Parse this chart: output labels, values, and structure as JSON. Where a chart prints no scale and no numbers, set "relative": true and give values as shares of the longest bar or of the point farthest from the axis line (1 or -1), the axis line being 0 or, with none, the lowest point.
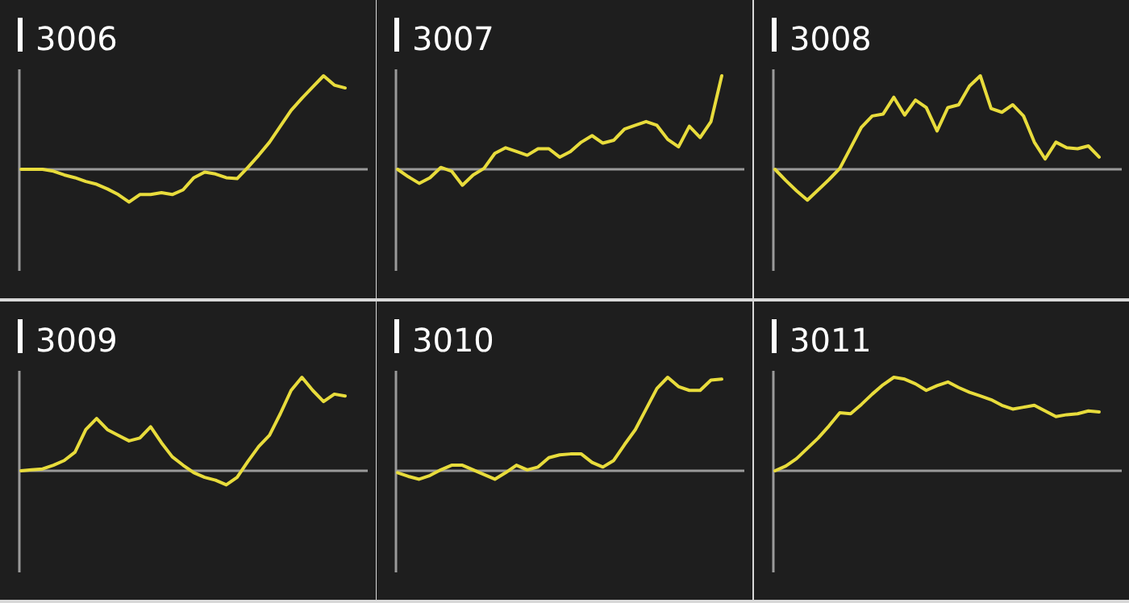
{
  "chart_data": [
    {
      "type": "line",
      "title": "3006",
      "relative": true,
      "categories": [
        null,
        null,
        null,
        null,
        null,
        null,
        null,
        null,
        null,
        null,
        null,
        null,
        null,
        null,
        null,
        null,
        null,
        null,
        null,
        null,
        null,
        null,
        null,
        null,
        null,
        null,
        null,
        null,
        null,
        null,
        null
      ],
      "series": [
        {
          "color": "#e8dc3c",
          "values": [
            0,
            0,
            0,
            -0.02,
            -0.06,
            -0.09,
            -0.13,
            -0.16,
            -0.21,
            -0.27,
            -0.35,
            -0.27,
            -0.27,
            -0.25,
            -0.27,
            -0.22,
            -0.09,
            -0.03,
            -0.05,
            -0.09,
            -0.1,
            0.02,
            0.15,
            0.29,
            0.46,
            0.63,
            0.76,
            0.88,
            1,
            0.9,
            0.87
          ]
        }
      ]
    },
    {
      "type": "line",
      "title": "3007",
      "relative": true,
      "categories": [
        null,
        null,
        null,
        null,
        null,
        null,
        null,
        null,
        null,
        null,
        null,
        null,
        null,
        null,
        null,
        null,
        null,
        null,
        null,
        null,
        null,
        null,
        null,
        null,
        null,
        null,
        null,
        null,
        null,
        null,
        null
      ],
      "series": [
        {
          "color": "#e8dc3c",
          "values": [
            0,
            -0.08,
            -0.15,
            -0.09,
            0.02,
            -0.02,
            -0.17,
            -0.06,
            0.01,
            0.17,
            0.23,
            0.19,
            0.15,
            0.22,
            0.22,
            0.13,
            0.19,
            0.29,
            0.36,
            0.28,
            0.31,
            0.43,
            0.47,
            0.51,
            0.47,
            0.32,
            0.24,
            0.46,
            0.34,
            0.51,
            1
          ]
        }
      ]
    },
    {
      "type": "line",
      "title": "3008",
      "relative": true,
      "categories": [
        null,
        null,
        null,
        null,
        null,
        null,
        null,
        null,
        null,
        null,
        null,
        null,
        null,
        null,
        null,
        null,
        null,
        null,
        null,
        null,
        null,
        null,
        null,
        null,
        null,
        null,
        null,
        null,
        null,
        null,
        null
      ],
      "series": [
        {
          "color": "#e8dc3c",
          "values": [
            0,
            -0.12,
            -0.23,
            -0.33,
            -0.22,
            -0.11,
            0.01,
            0.23,
            0.45,
            0.57,
            0.59,
            0.77,
            0.58,
            0.74,
            0.66,
            0.41,
            0.66,
            0.69,
            0.89,
            1,
            0.65,
            0.61,
            0.69,
            0.57,
            0.29,
            0.11,
            0.29,
            0.23,
            0.22,
            0.25,
            0.13
          ]
        }
      ]
    },
    {
      "type": "line",
      "title": "3009",
      "relative": true,
      "categories": [
        null,
        null,
        null,
        null,
        null,
        null,
        null,
        null,
        null,
        null,
        null,
        null,
        null,
        null,
        null,
        null,
        null,
        null,
        null,
        null,
        null,
        null,
        null,
        null,
        null,
        null,
        null,
        null,
        null,
        null,
        null
      ],
      "series": [
        {
          "color": "#e8dc3c",
          "values": [
            0,
            0.01,
            0.02,
            0.06,
            0.11,
            0.2,
            0.44,
            0.56,
            0.44,
            0.38,
            0.32,
            0.35,
            0.47,
            0.3,
            0.15,
            0.06,
            -0.02,
            -0.07,
            -0.1,
            -0.15,
            -0.07,
            0.1,
            0.26,
            0.38,
            0.61,
            0.86,
            1,
            0.86,
            0.74,
            0.82,
            0.8
          ]
        }
      ]
    },
    {
      "type": "line",
      "title": "3010",
      "relative": true,
      "categories": [
        null,
        null,
        null,
        null,
        null,
        null,
        null,
        null,
        null,
        null,
        null,
        null,
        null,
        null,
        null,
        null,
        null,
        null,
        null,
        null,
        null,
        null,
        null,
        null,
        null,
        null,
        null,
        null,
        null,
        null,
        null
      ],
      "series": [
        {
          "color": "#e8dc3c",
          "values": [
            -0.02,
            -0.06,
            -0.09,
            -0.05,
            0.01,
            0.06,
            0.06,
            0.01,
            -0.04,
            -0.09,
            -0.02,
            0.06,
            0.01,
            0.04,
            0.14,
            0.17,
            0.18,
            0.18,
            0.09,
            0.04,
            0.11,
            0.28,
            0.44,
            0.66,
            0.88,
            1,
            0.9,
            0.86,
            0.86,
            0.97,
            0.98
          ]
        }
      ]
    },
    {
      "type": "line",
      "title": "3011",
      "relative": true,
      "categories": [
        null,
        null,
        null,
        null,
        null,
        null,
        null,
        null,
        null,
        null,
        null,
        null,
        null,
        null,
        null,
        null,
        null,
        null,
        null,
        null,
        null,
        null,
        null,
        null,
        null,
        null,
        null,
        null,
        null,
        null,
        null
      ],
      "series": [
        {
          "color": "#e8dc3c",
          "values": [
            0,
            0.05,
            0.13,
            0.24,
            0.35,
            0.48,
            0.62,
            0.61,
            0.71,
            0.82,
            0.92,
            1,
            0.98,
            0.93,
            0.86,
            0.91,
            0.95,
            0.89,
            0.84,
            0.8,
            0.76,
            0.7,
            0.66,
            0.68,
            0.7,
            0.64,
            0.58,
            0.6,
            0.61,
            0.64,
            0.63
          ]
        }
      ]
    }
  ]
}
